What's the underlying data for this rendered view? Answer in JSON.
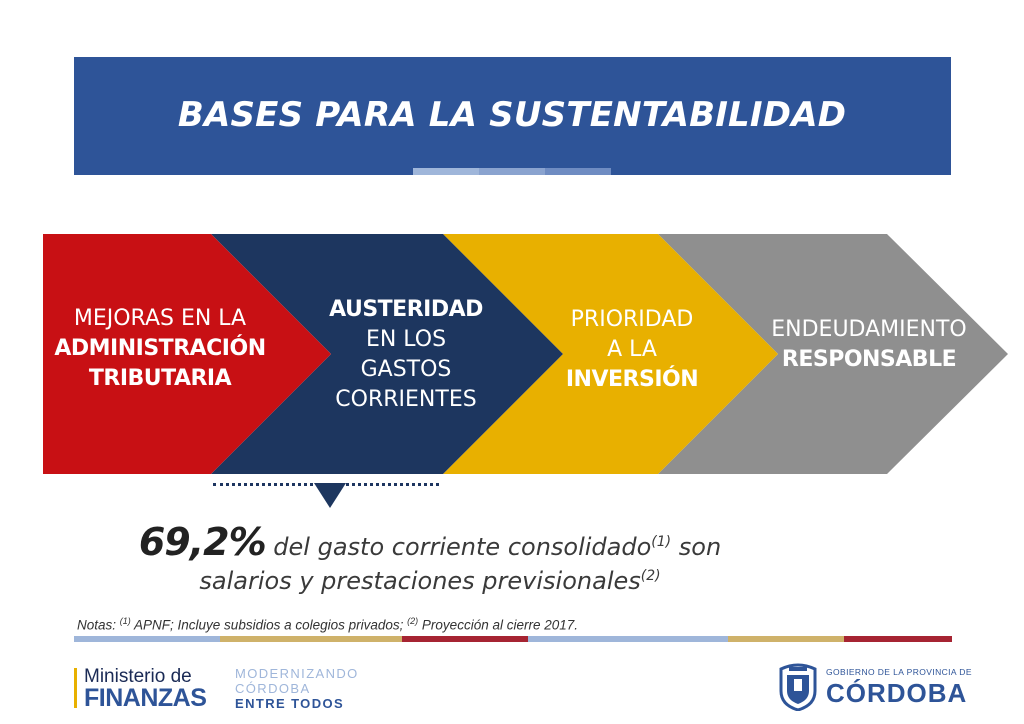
{
  "banner": {
    "title": "BASES PARA LA SUSTENTABILIDAD",
    "color": "#2e5498"
  },
  "segments": [
    {
      "lines": [
        {
          "t": "MEJORAS EN LA",
          "bold": false
        },
        {
          "t": "ADMINISTRACIÓN",
          "bold": true
        },
        {
          "t": "TRIBUTARIA",
          "bold": true
        }
      ],
      "color": "#c81014"
    },
    {
      "lines": [
        {
          "t": "AUSTERIDAD",
          "bold": true
        },
        {
          "t": "EN LOS",
          "bold": false
        },
        {
          "t": "GASTOS",
          "bold": false
        },
        {
          "t": "CORRIENTES",
          "bold": false
        }
      ],
      "color": "#1d365f"
    },
    {
      "lines": [
        {
          "t": "PRIORIDAD",
          "bold": false
        },
        {
          "t": "A LA",
          "bold": false
        },
        {
          "t": "INVERSIÓN",
          "bold": true
        }
      ],
      "color": "#e8b000"
    },
    {
      "lines": [
        {
          "t": "ENDEUDAMIENTO",
          "bold": false
        },
        {
          "t": "RESPONSABLE",
          "bold": true
        }
      ],
      "color": "#8f8f8f"
    }
  ],
  "highlight": {
    "percent": "69,2%",
    "line1": " del gasto corriente consolidado",
    "sup1": "(1)",
    "line1_end": " son",
    "line2": "salarios y prestaciones previsionales",
    "sup2": "(2)"
  },
  "notes": {
    "prefix": "Notas: ",
    "sup1": "(1)",
    "text1": " APNF; Incluye subsidios a colegios privados; ",
    "sup2": "(2)",
    "text2": " Proyección al cierre 2017."
  },
  "footer": {
    "ministry_line1": "Ministerio de",
    "ministry_line2": "FINANZAS",
    "slogan_line1": "MODERNIZANDO",
    "slogan_line2": "CÓRDOBA",
    "slogan_line3": "ENTRE TODOS",
    "gov_small": "GOBIERNO DE LA PROVINCIA DE",
    "gov_big": "CÓRDOBA"
  },
  "palette": {
    "light_blue": "#9fb6da",
    "gold": "#cfb26a",
    "maroon": "#a62432"
  }
}
